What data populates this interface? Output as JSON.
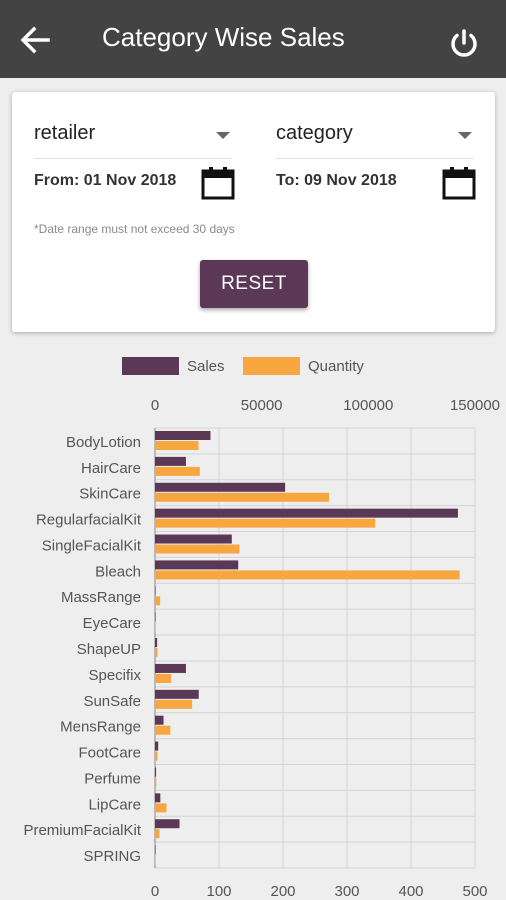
{
  "header": {
    "title": "Category Wise Sales",
    "back_icon": "arrow-left-icon",
    "power_icon": "power-icon"
  },
  "filters": {
    "retailer_label": "retailer",
    "category_label": "category",
    "from_date": "From: 01 Nov 2018",
    "to_date": "To: 09 Nov 2018",
    "calendar_icon": "calendar-icon",
    "note": "*Date range must not exceed 30 days",
    "reset_label": "RESET"
  },
  "colors": {
    "appbar": "#434343",
    "sales": "#5b3856",
    "quantity": "#f7a640",
    "button": "#5b3856"
  },
  "chart_data": {
    "type": "bar",
    "orientation": "horizontal",
    "categories": [
      "BodyLotion",
      "HairCare",
      "SkinCare",
      "RegularfacialKit",
      "SingleFacialKit",
      "Bleach",
      "MassRange",
      "EyeCare",
      "ShapeUP",
      "Specifix",
      "SunSafe",
      "MensRange",
      "FootCare",
      "Perfume",
      "LipCare",
      "PremiumFacialKit",
      "SPRING"
    ],
    "series": [
      {
        "name": "Sales",
        "axis": "top",
        "values": [
          26000,
          14500,
          61000,
          142000,
          36000,
          39000,
          200,
          100,
          1000,
          14500,
          20500,
          4000,
          1500,
          500,
          2500,
          11500,
          100
        ]
      },
      {
        "name": "Quantity",
        "axis": "bottom",
        "values": [
          68,
          70,
          272,
          344,
          132,
          476,
          8,
          1,
          4,
          25,
          58,
          24,
          4,
          2,
          18,
          7,
          1
        ]
      }
    ],
    "top_axis": {
      "ticks": [
        "0",
        "50000",
        "100000",
        "150000"
      ],
      "range": [
        0,
        150000
      ]
    },
    "bottom_axis": {
      "ticks": [
        "0",
        "100",
        "200",
        "300",
        "400",
        "500"
      ],
      "range": [
        0,
        500
      ]
    },
    "grid": true,
    "legend": "top-center"
  }
}
